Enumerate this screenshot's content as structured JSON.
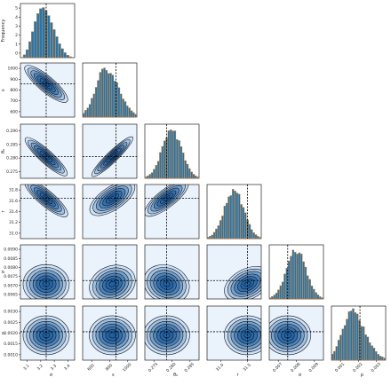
{
  "chart_data": {
    "type": "corner",
    "parameters": [
      {
        "label": "σ",
        "range": [
          3.05,
          3.45
        ],
        "truth": 3.24,
        "ticks": [
          "3.1",
          "3.2",
          "3.3",
          "3.4"
        ]
      },
      {
        "label": "ε",
        "range": [
          550,
          1080
        ],
        "truth": 875,
        "ticks": [
          "600",
          "800",
          "1000"
        ]
      },
      {
        "label": "θ₀",
        "range": [
          0.2715,
          0.2915
        ],
        "truth": 0.2795,
        "ticks": [
          "0.275",
          "0.280",
          "0.285"
        ]
      },
      {
        "label": "r",
        "range": [
          30.95,
          31.85
        ],
        "truth": 31.62,
        "ticks": [
          "31.0",
          "31.5"
        ]
      },
      {
        "label": "σ",
        "range": [
          0.00595,
          0.00915
        ],
        "truth": 0.00704,
        "ticks": [
          "0.007",
          "0.008",
          "0.009"
        ]
      },
      {
        "label": "p",
        "range": [
          0.0005,
          0.0032
        ],
        "truth": 0.00192,
        "ticks": [
          "0.001",
          "0.002",
          "0.003"
        ]
      }
    ],
    "y_tick_labels": [
      [
        "0",
        "1",
        "2",
        "3",
        "4",
        "5"
      ],
      [
        "600",
        "700",
        "800",
        "900",
        "1000"
      ],
      [
        "0.275",
        "0.280",
        "0.285",
        "0.290"
      ],
      [
        "31.0",
        "31.2",
        "31.4",
        "31.6",
        "31.8"
      ],
      [
        "0.0065",
        "0.0070",
        "0.0075",
        "0.0080",
        "0.0085",
        "0.0090"
      ],
      [
        "0.0010",
        "0.0015",
        "0.0020",
        "0.0025",
        "0.0030"
      ]
    ],
    "x_axis_labels": [
      "σ",
      "ε",
      "θ₀",
      "r",
      "σ",
      "p"
    ],
    "y_axis_labels": [
      "Frequency",
      "ε",
      "θ₀",
      "r",
      "σ",
      "p"
    ],
    "diag_y_range": [
      0,
      5.4
    ],
    "first_marginal": {
      "x": [
        3.08,
        3.1,
        3.12,
        3.14,
        3.16,
        3.18,
        3.2,
        3.22,
        3.24,
        3.26,
        3.28,
        3.3,
        3.32,
        3.34,
        3.36,
        3.38,
        3.4,
        3.42
      ],
      "frequency": [
        0.3,
        0.8,
        1.6,
        2.6,
        3.6,
        4.4,
        4.9,
        5.0,
        4.7,
        4.2,
        3.5,
        2.8,
        2.1,
        1.4,
        0.9,
        0.5,
        0.25,
        0.1
      ]
    },
    "pairs": [
      {
        "row": 1,
        "col": 0,
        "corr": -0.8
      },
      {
        "row": 2,
        "col": 0,
        "corr": -0.88
      },
      {
        "row": 2,
        "col": 1,
        "corr": 0.96
      },
      {
        "row": 3,
        "col": 0,
        "corr": -0.8
      },
      {
        "row": 3,
        "col": 1,
        "corr": 0.55
      },
      {
        "row": 3,
        "col": 2,
        "corr": 0.72
      },
      {
        "row": 4,
        "col": 0,
        "corr": 0.0
      },
      {
        "row": 4,
        "col": 1,
        "corr": 0.1
      },
      {
        "row": 4,
        "col": 2,
        "corr": -0.05
      },
      {
        "row": 4,
        "col": 3,
        "corr": 0.3
      },
      {
        "row": 5,
        "col": 0,
        "corr": 0.0
      },
      {
        "row": 5,
        "col": 1,
        "corr": 0.0
      },
      {
        "row": 5,
        "col": 2,
        "corr": 0.0
      },
      {
        "row": 5,
        "col": 3,
        "corr": 0.0
      },
      {
        "row": 5,
        "col": 4,
        "corr": 0.0
      }
    ],
    "colors": {
      "fill": "#1f77b4",
      "hist_outline": "#ff7f0e",
      "panel_bg": "#eaf2fb",
      "contour_fill": "#1f5f9f",
      "truth_line": "#000000"
    },
    "contour_levels": 7,
    "grid": false,
    "legend": "none"
  }
}
